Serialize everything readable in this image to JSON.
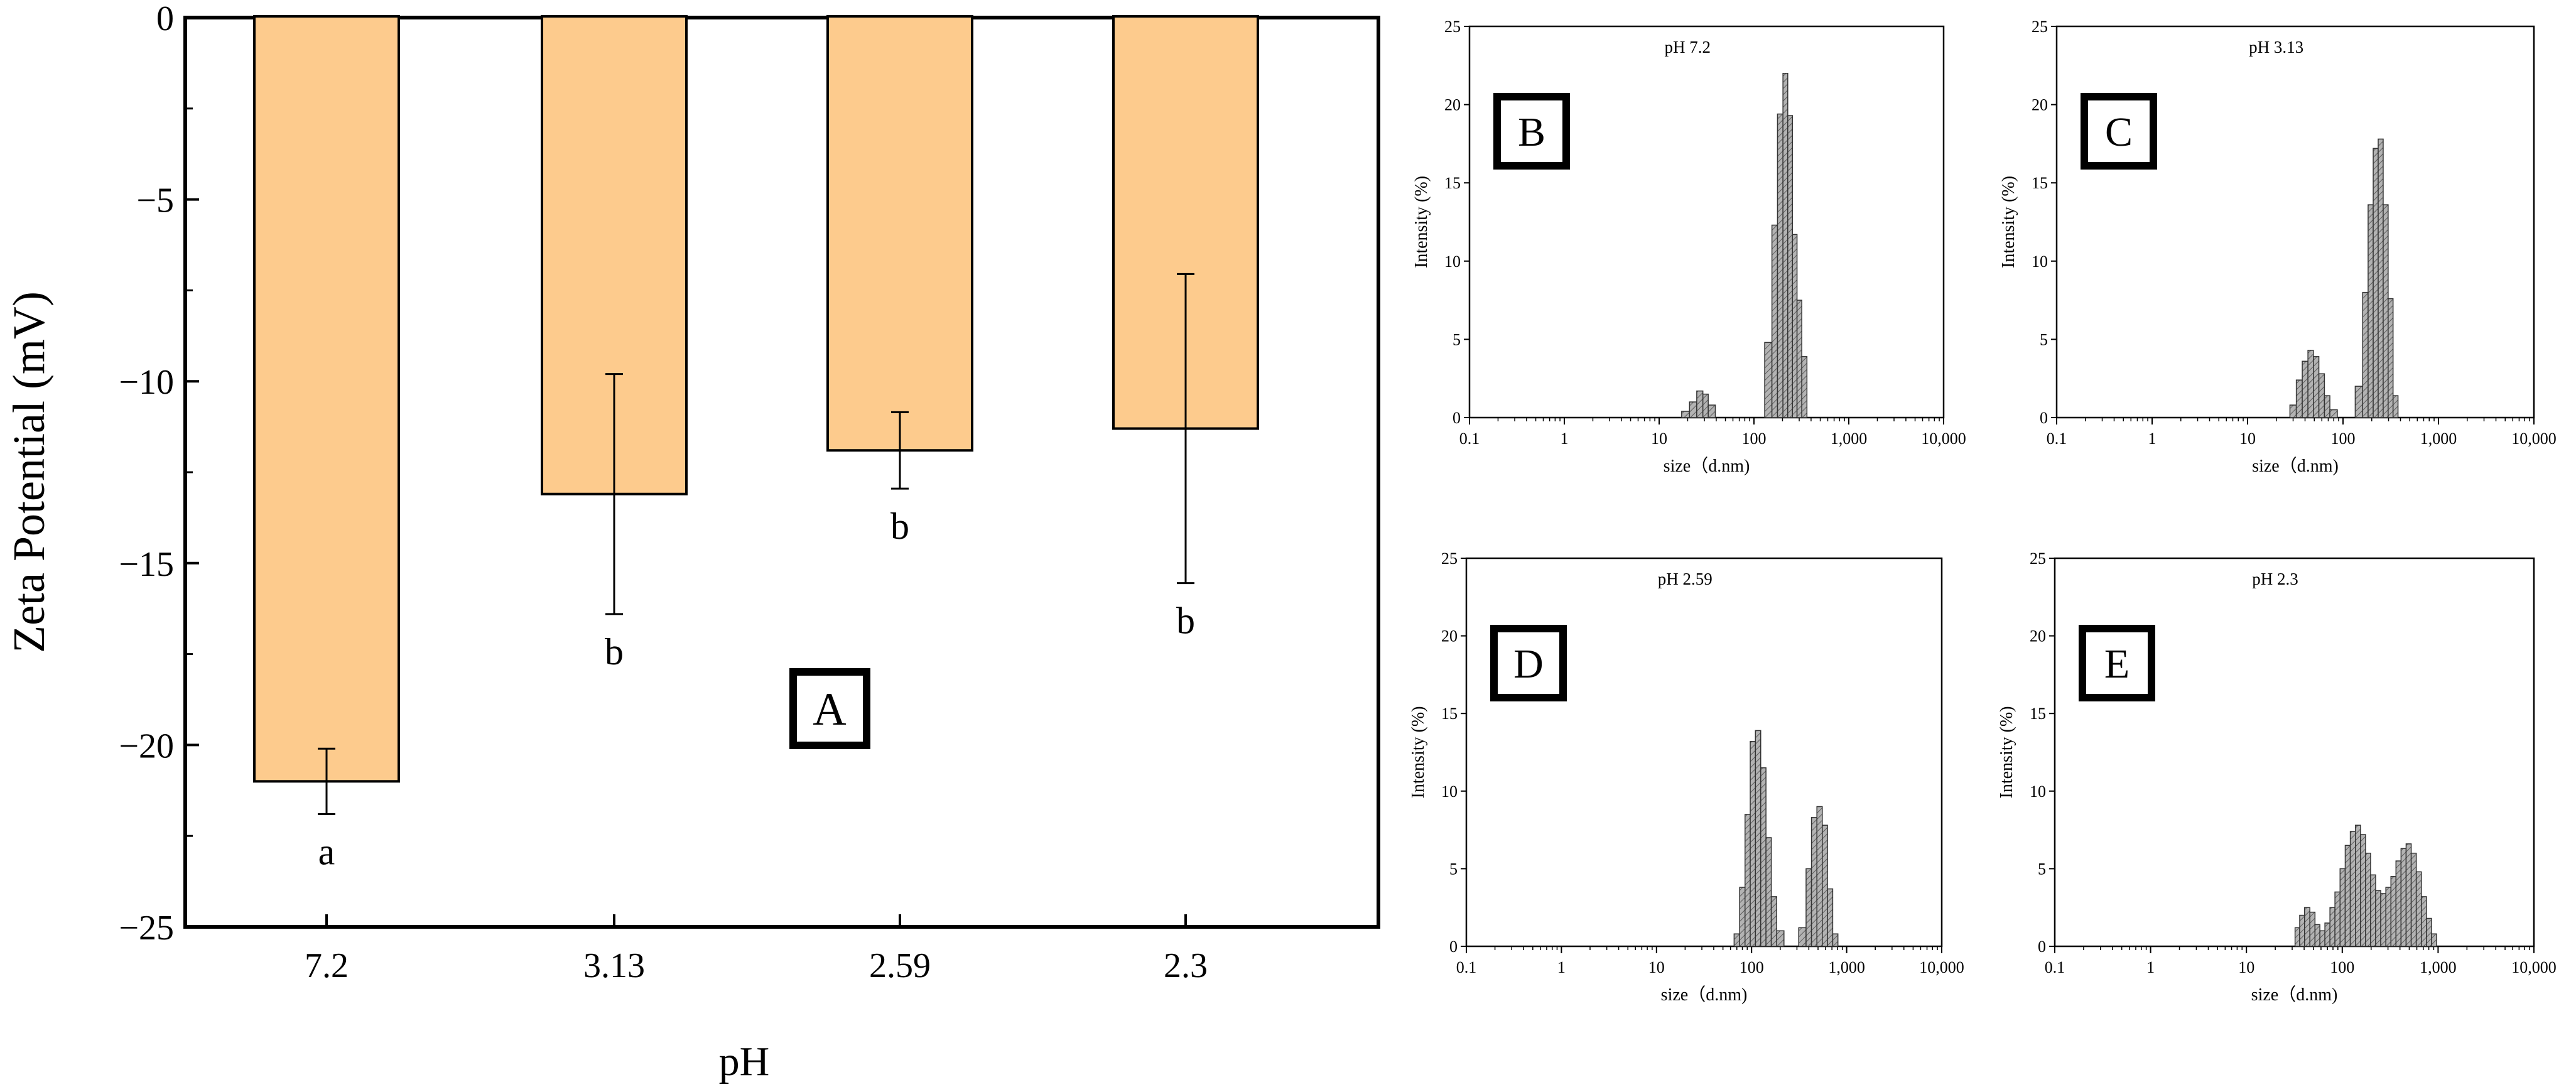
{
  "chart_data": [
    {
      "panel": "A",
      "type": "bar",
      "xlabel": "pH",
      "ylabel": "Zeta Potential (mV)",
      "ylim": [
        -25,
        0
      ],
      "yticks": [
        0,
        -5,
        -10,
        -15,
        -20,
        -25
      ],
      "ytick_labels": [
        "0",
        "−5",
        "−10",
        "−15",
        "−20",
        "−25"
      ],
      "categories": [
        "7.2",
        "3.13",
        "2.59",
        "2.3"
      ],
      "values": [
        -21.0,
        -13.1,
        -11.9,
        -11.3
      ],
      "errors": [
        0.9,
        3.3,
        1.05,
        4.25
      ],
      "significance": [
        "a",
        "b",
        "b",
        "b"
      ],
      "panel_label": "A"
    },
    {
      "panel": "B",
      "type": "bar",
      "title": "pH 7.2",
      "panel_label": "B",
      "xlabel": "size（d.nm)",
      "ylabel": "Intensity (%)",
      "xscale": "log",
      "xlim": [
        0.1,
        10000
      ],
      "ylim": [
        0,
        25
      ],
      "xtick_labels": [
        "0.1",
        "1",
        "10",
        "100",
        "1,000",
        "10,000"
      ],
      "ytick_labels": [
        "0",
        "5",
        "10",
        "15",
        "20",
        "25"
      ],
      "sizes": [
        19,
        23,
        27,
        31,
        35,
        145,
        165,
        190,
        215,
        240,
        270,
        300,
        340
      ],
      "values": [
        0.4,
        1.0,
        1.7,
        1.5,
        0.8,
        4.8,
        12.3,
        19.4,
        22.0,
        19.3,
        11.7,
        7.5,
        3.9
      ]
    },
    {
      "panel": "C",
      "type": "bar",
      "title": "pH 3.13",
      "panel_label": "C",
      "xlabel": "size（d.nm)",
      "ylabel": "Intensity (%)",
      "xscale": "log",
      "xlim": [
        0.1,
        10000
      ],
      "ylim": [
        0,
        25
      ],
      "xtick_labels": [
        "0.1",
        "1",
        "10",
        "100",
        "1,000",
        "10,000"
      ],
      "ytick_labels": [
        "0",
        "5",
        "10",
        "15",
        "20",
        "25"
      ],
      "sizes": [
        30,
        35,
        40,
        46,
        52,
        60,
        68,
        78,
        150,
        172,
        195,
        220,
        248,
        280,
        315,
        355
      ],
      "values": [
        0.8,
        2.4,
        3.6,
        4.3,
        3.9,
        2.8,
        1.4,
        0.5,
        2.0,
        8.0,
        13.6,
        17.2,
        17.8,
        13.6,
        7.6,
        1.4
      ]
    },
    {
      "panel": "D",
      "type": "bar",
      "title": "pH 2.59",
      "panel_label": "D",
      "xlabel": "size（d.nm)",
      "ylabel": "Intensity (%)",
      "xscale": "log",
      "xlim": [
        0.1,
        10000
      ],
      "ylim": [
        0,
        25
      ],
      "xtick_labels": [
        "0.1",
        "1",
        "10",
        "100",
        "1,000",
        "10,000"
      ],
      "ytick_labels": [
        "0",
        "5",
        "10",
        "15",
        "20",
        "25"
      ],
      "sizes": [
        70,
        80,
        91,
        103,
        117,
        133,
        151,
        172,
        196,
        350,
        400,
        455,
        520,
        590,
        670,
        760
      ],
      "values": [
        0.8,
        3.8,
        8.5,
        13.2,
        13.9,
        11.5,
        7.0,
        3.2,
        1.0,
        1.2,
        5.0,
        8.3,
        9.0,
        7.8,
        3.7,
        0.8
      ]
    },
    {
      "panel": "E",
      "type": "bar",
      "title": "pH 2.3",
      "panel_label": "E",
      "xlabel": "size（d.nm)",
      "ylabel": "Intensity (%)",
      "xscale": "log",
      "xlim": [
        0.1,
        10000
      ],
      "ylim": [
        0,
        25
      ],
      "xtick_labels": [
        "0.1",
        "1",
        "10",
        "100",
        "1,000",
        "10,000"
      ],
      "ytick_labels": [
        "0",
        "5",
        "10",
        "15",
        "20",
        "25"
      ],
      "sizes": [
        34,
        38,
        43,
        49,
        55,
        62,
        70,
        79,
        89,
        101,
        114,
        129,
        146,
        165,
        186,
        210,
        237,
        268,
        303,
        342,
        386,
        436,
        493,
        557,
        629,
        711,
        803,
        907
      ],
      "values": [
        1.2,
        2.0,
        2.5,
        2.2,
        1.4,
        1.0,
        1.5,
        2.5,
        3.5,
        5.0,
        6.5,
        7.4,
        7.8,
        7.2,
        6.0,
        4.6,
        3.6,
        3.4,
        3.8,
        4.5,
        5.5,
        6.3,
        6.6,
        6.0,
        4.8,
        3.2,
        1.8,
        0.8
      ]
    }
  ]
}
